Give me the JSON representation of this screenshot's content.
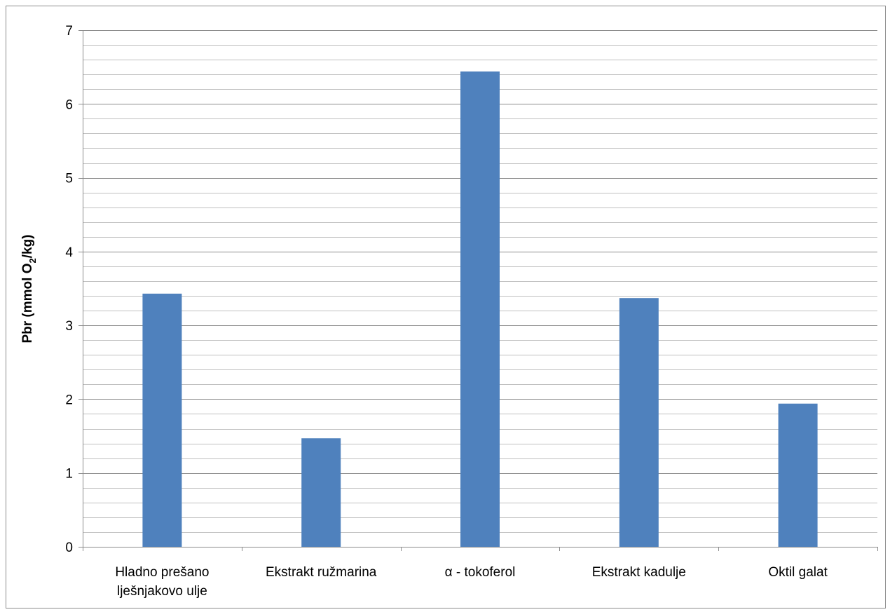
{
  "chart_data": {
    "type": "bar",
    "categories": [
      [
        "Hladno prešano",
        "lješnjakovo ulje"
      ],
      [
        "Ekstrakt ružmarina"
      ],
      [
        "α - tokoferol"
      ],
      [
        "Ekstrakt kadulje"
      ],
      [
        "Oktil galat"
      ]
    ],
    "values": [
      3.43,
      1.47,
      6.44,
      3.37,
      1.94
    ],
    "title": "",
    "xlabel": "",
    "ylabel": {
      "main": "Pbr (mmol O",
      "sub": "2",
      "tail": "/kg)"
    },
    "ylim": [
      0,
      7
    ],
    "yticks": [
      "0",
      "1",
      "2",
      "3",
      "4",
      "5",
      "6",
      "7"
    ],
    "major_step": 1,
    "minor_step": 0.2,
    "grid": true,
    "legend": "none",
    "bar_color": "#4f81bd",
    "major_grid_color": "#8c8c8c",
    "minor_grid_color": "#c0c0c0"
  }
}
